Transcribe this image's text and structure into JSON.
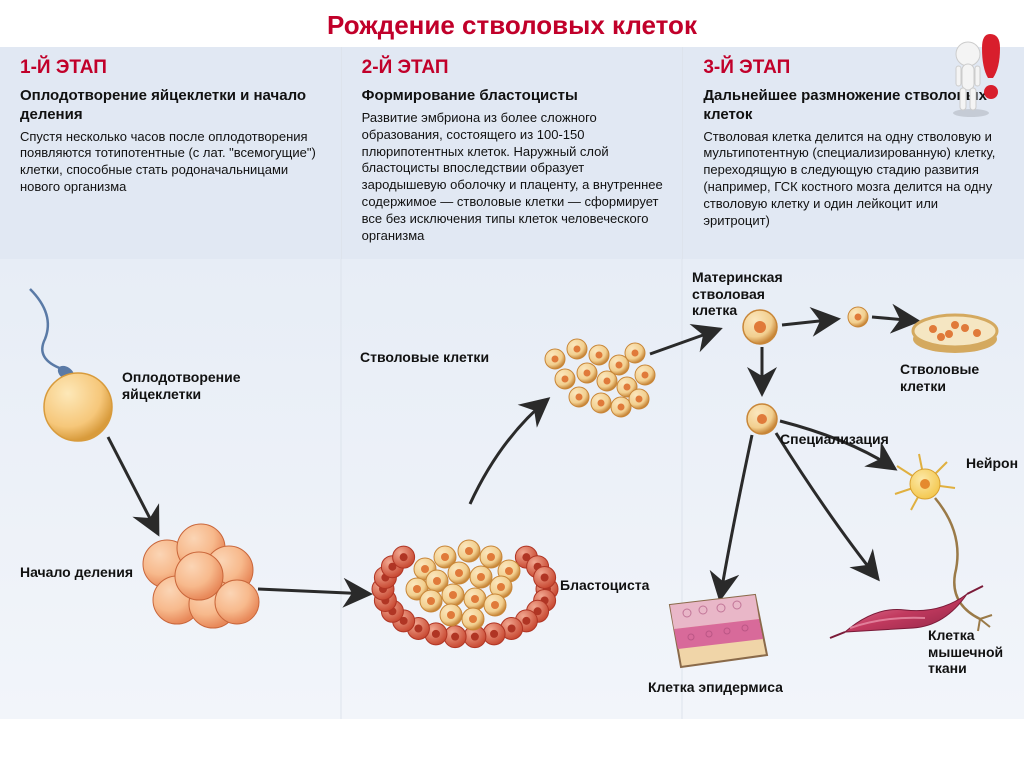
{
  "title": "Рождение стволовых клеток",
  "title_color": "#c1002a",
  "header_bg": "#e1e8f3",
  "divider_color": "#dde3ec",
  "diagram_bg_top": "#e7edf6",
  "diagram_bg_bottom": "#f2f5fa",
  "text_color": "#111111",
  "stage_label_color": "#c1002a",
  "stages": [
    {
      "label": "1-Й ЭТАП",
      "subtitle": "Оплодотворение яйцеклетки и начало деления",
      "desc": "Спустя несколько часов после оплодотворения появляются тотипотентные (с лат. \"всемогущие\") клетки, способные стать родоначальницами нового организма"
    },
    {
      "label": "2-Й ЭТАП",
      "subtitle": "Формирование бластоцисты",
      "desc": "Развитие эмбриона из более сложного образования, состоящего из 100-150 плюрипотентных клеток. Наружный слой бластоцисты впоследствии образует зародышевую оболочку и плаценту, а внутреннее содержимое — стволовые клетки — сформирует все без исключения типы клеток человеческого организма"
    },
    {
      "label": "3-Й ЭТАП",
      "subtitle": "Дальнейшее размножение стволовых клеток",
      "desc": "Стволовая клетка делится на одну стволовую и мультипотентную (специализированную) клетку, переходящую в следующую стадию развития (например, ГСК костного мозга делится на одну стволовую клетку и один лейкоцит или эритроцит)"
    }
  ],
  "labels": {
    "fertilization": "Оплодотворение яйцеклетки",
    "division_start": "Начало деления",
    "stem_cells": "Стволовые клетки",
    "blastocyst": "Бластоциста",
    "mother_stem": "Материнская стволовая клетка",
    "specialization": "Специализация",
    "stem_cells2": "Стволовые клетки",
    "neuron": "Нейрон",
    "muscle": "Клетка мышечной ткани",
    "epidermis": "Клетка эпидермиса"
  },
  "colors": {
    "egg_fill": "#f6c77a",
    "egg_stroke": "#d89b3c",
    "egg_highlight": "#fde8b8",
    "sperm": "#5a7aa6",
    "morula_light": "#f7b98c",
    "morula_dark": "#e8895a",
    "morula_stroke": "#c9663a",
    "stem_fill": "#f2cf8f",
    "stem_core": "#e07a3a",
    "stem_stroke": "#c88638",
    "blasto_outer": "#e06a4e",
    "blasto_outer_core": "#b03524",
    "arrow": "#2a2a2a",
    "dish_rim": "#d4a95f",
    "dish_fill": "#f5e6c2",
    "neuron_body": "#f4c851",
    "neuron_core": "#e58a2e",
    "neuron_axon": "#9a7a48",
    "muscle_fill": "#c23a5f",
    "muscle_hl": "#e88fa8",
    "skin_top": "#e9b7c8",
    "skin_mid": "#d86a9a",
    "skin_bottom": "#f0d5a8",
    "skin_border": "#8a6a4a"
  },
  "fontsizes": {
    "title": 26,
    "stage_label": 19,
    "subtitle": 15,
    "desc": 13,
    "diagram_label": 14
  }
}
